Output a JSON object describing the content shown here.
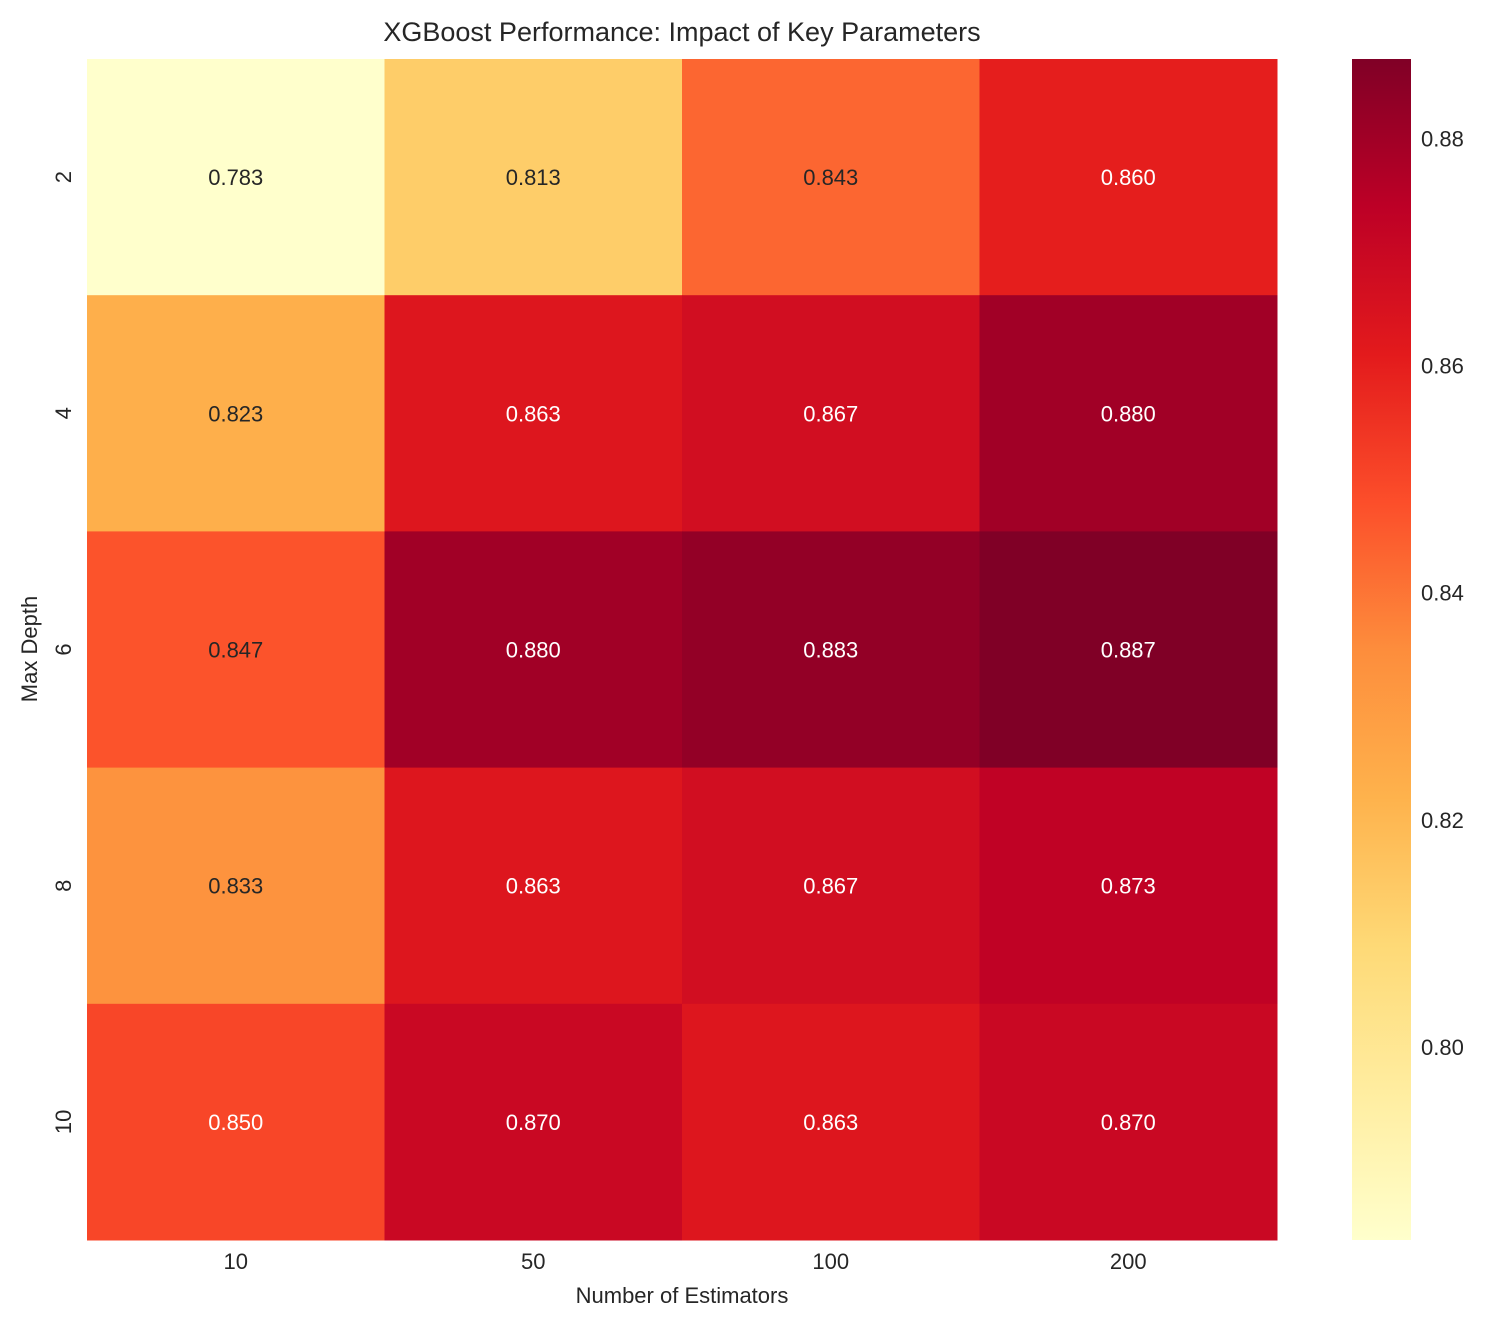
{
  "chart_data": {
    "type": "heatmap",
    "title": "XGBoost Performance: Impact of Key Parameters",
    "xlabel": "Number of Estimators",
    "ylabel": "Max Depth",
    "x_categories": [
      "10",
      "50",
      "100",
      "200"
    ],
    "y_categories": [
      "2",
      "4",
      "6",
      "8",
      "10"
    ],
    "values": [
      [
        0.783,
        0.813,
        0.843,
        0.86
      ],
      [
        0.823,
        0.863,
        0.867,
        0.88
      ],
      [
        0.847,
        0.88,
        0.883,
        0.887
      ],
      [
        0.833,
        0.863,
        0.867,
        0.873
      ],
      [
        0.85,
        0.87,
        0.863,
        0.87
      ]
    ],
    "cell_labels": [
      [
        "0.783",
        "0.813",
        "0.843",
        "0.860"
      ],
      [
        "0.823",
        "0.863",
        "0.867",
        "0.880"
      ],
      [
        "0.847",
        "0.880",
        "0.883",
        "0.887"
      ],
      [
        "0.833",
        "0.863",
        "0.867",
        "0.873"
      ],
      [
        "0.850",
        "0.870",
        "0.863",
        "0.870"
      ]
    ],
    "colormap": "YlOrRd",
    "color_range": [
      0.783,
      0.887
    ],
    "colorbar": {
      "ticks": [
        0.8,
        0.82,
        0.84,
        0.86,
        0.88
      ],
      "tick_labels": [
        "0.80",
        "0.82",
        "0.84",
        "0.86",
        "0.88"
      ]
    },
    "grid": false
  }
}
